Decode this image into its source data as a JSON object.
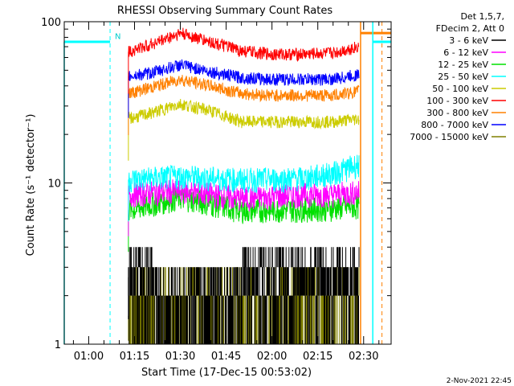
{
  "chart_data": {
    "type": "line",
    "title": "RHESSI Observing Summary Count Rates",
    "xlabel": "Start Time (17-Dec-15 00:53:02)",
    "ylabel": "Count Rate (s⁻¹ detector⁻¹)",
    "yscale": "log",
    "ylim": [
      1,
      100
    ],
    "xlim_minutes": [
      -8,
      99
    ],
    "x_ticks": [
      "01:00",
      "01:15",
      "01:30",
      "01:45",
      "02:00",
      "02:15",
      "02:30"
    ],
    "y_ticks": [
      "1",
      "10",
      "100"
    ],
    "legend_header": [
      "Det 1,5,7,",
      "FDecim 2, Att 0"
    ],
    "legend_position": "right",
    "marker_label": "N",
    "footer_date": "2-Nov-2021 22:45",
    "series": [
      {
        "name": "3 - 6 keV",
        "color": "#000000",
        "x": [
          13,
          30,
          50,
          70,
          80,
          88
        ],
        "y": [
          2.6,
          2.4,
          2.5,
          2.7,
          2.6,
          2.8
        ]
      },
      {
        "name": "6 - 12 keV",
        "color": "#ff00ff",
        "x": [
          13,
          30,
          50,
          70,
          80,
          88
        ],
        "y": [
          8.5,
          9.0,
          8.0,
          8.5,
          8.5,
          8.8
        ]
      },
      {
        "name": "12 - 25 keV",
        "color": "#00e000",
        "x": [
          13,
          30,
          50,
          70,
          80,
          88
        ],
        "y": [
          6.8,
          8.2,
          6.8,
          6.9,
          7.0,
          7.2
        ]
      },
      {
        "name": "25 - 50 keV",
        "color": "#00ffff",
        "x": [
          13,
          30,
          50,
          70,
          80,
          88
        ],
        "y": [
          10.5,
          11.0,
          10.5,
          10.7,
          11.5,
          13.0
        ]
      },
      {
        "name": "50 - 100 keV",
        "color": "#cccc00",
        "x": [
          13,
          20,
          30,
          40,
          50,
          60,
          70,
          80,
          88
        ],
        "y": [
          25,
          27,
          31,
          28,
          24,
          24,
          24,
          24,
          25
        ]
      },
      {
        "name": "100 - 300 keV",
        "color": "#ff0000",
        "x": [
          13,
          20,
          30,
          40,
          50,
          60,
          70,
          80,
          88
        ],
        "y": [
          65,
          72,
          85,
          75,
          66,
          63,
          63,
          64,
          70
        ]
      },
      {
        "name": "300 - 800 keV",
        "color": "#ff8000",
        "x": [
          13,
          20,
          30,
          40,
          50,
          60,
          70,
          80,
          88
        ],
        "y": [
          36,
          39,
          44,
          40,
          36,
          35,
          35,
          35,
          37
        ]
      },
      {
        "name": "800 - 7000 keV",
        "color": "#0000ff",
        "x": [
          13,
          20,
          30,
          40,
          50,
          60,
          70,
          80,
          88
        ],
        "y": [
          46,
          48,
          54,
          49,
          45,
          44,
          44,
          44,
          47
        ]
      },
      {
        "name": "7000 - 15000 keV",
        "color": "#808000",
        "x": [
          13,
          30,
          50,
          70,
          80,
          88
        ],
        "y": [
          1.5,
          1.6,
          1.5,
          1.6,
          1.6,
          1.7
        ]
      }
    ]
  }
}
